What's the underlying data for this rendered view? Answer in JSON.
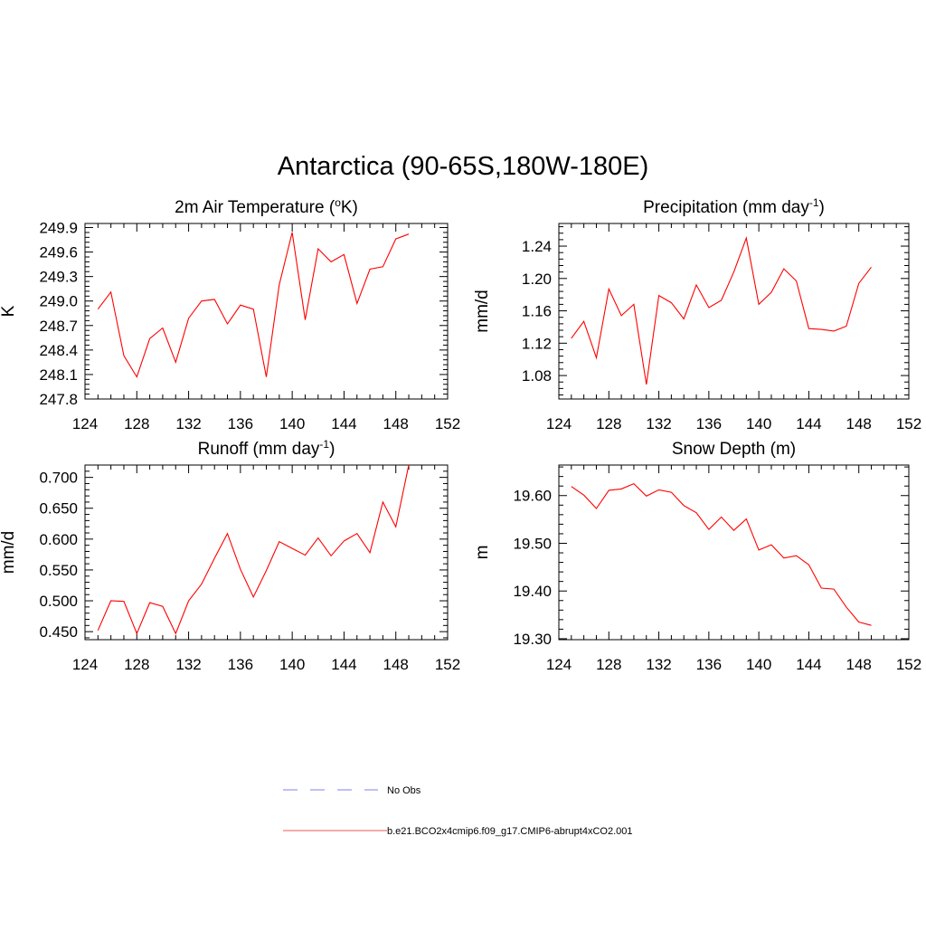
{
  "title": "Antarctica (90-65S,180W-180E)",
  "legend": [
    {
      "label": "No Obs",
      "color": "#9a9af0",
      "style": "dashed"
    },
    {
      "label": "b.e21.BCO2x4cmip6.f09_g17.CMIP6-abrupt4xCO2.001",
      "color": "#f07878",
      "style": "solid"
    }
  ],
  "chart_data": [
    {
      "type": "line",
      "title": "2m Air Temperature (°K)",
      "title_parts": [
        "2m Air Temperature (",
        "o",
        "K)"
      ],
      "xlabel": "",
      "ylabel": "K",
      "xlim": [
        124,
        152
      ],
      "ylim": [
        247.8,
        249.95
      ],
      "xticks": [
        "124",
        "128",
        "132",
        "136",
        "140",
        "144",
        "148",
        "152"
      ],
      "yticks": [
        "247.8",
        "248.1",
        "248.4",
        "248.7",
        "249.0",
        "249.3",
        "249.6",
        "249.9"
      ],
      "grid": false,
      "color": "#ff0000",
      "x": [
        125,
        126,
        127,
        128,
        129,
        130,
        131,
        132,
        133,
        134,
        135,
        136,
        137,
        138,
        139,
        140,
        141,
        142,
        143,
        144,
        145,
        146,
        147,
        148,
        149
      ],
      "y": [
        248.9,
        249.11,
        248.33,
        248.07,
        248.54,
        248.67,
        248.25,
        248.79,
        249.0,
        249.02,
        248.72,
        248.95,
        248.9,
        248.07,
        249.2,
        249.84,
        248.77,
        249.64,
        249.48,
        249.57,
        248.97,
        249.39,
        249.42,
        249.76,
        249.82
      ]
    },
    {
      "type": "line",
      "title": "Precipitation (mm day-1)",
      "title_parts": [
        "Precipitation (mm day",
        "-1",
        ")"
      ],
      "xlabel": "",
      "ylabel": "mm/d",
      "xlim": [
        124,
        152
      ],
      "ylim": [
        1.051,
        1.268
      ],
      "xticks": [
        "124",
        "128",
        "132",
        "136",
        "140",
        "144",
        "148",
        "152"
      ],
      "yticks": [
        "1.08",
        "1.12",
        "1.16",
        "1.20",
        "1.24"
      ],
      "grid": false,
      "color": "#ff0000",
      "x": [
        125,
        126,
        127,
        128,
        129,
        130,
        131,
        132,
        133,
        134,
        135,
        136,
        137,
        138,
        139,
        140,
        141,
        142,
        143,
        144,
        145,
        146,
        147,
        148,
        149
      ],
      "y": [
        1.126,
        1.147,
        1.102,
        1.187,
        1.154,
        1.168,
        1.069,
        1.179,
        1.17,
        1.15,
        1.192,
        1.164,
        1.173,
        1.208,
        1.25,
        1.168,
        1.183,
        1.212,
        1.197,
        1.138,
        1.137,
        1.135,
        1.141,
        1.194,
        1.214
      ]
    },
    {
      "type": "line",
      "title": "Runoff (mm day-1)",
      "title_parts": [
        "Runoff (mm day",
        "-1",
        ")"
      ],
      "xlabel": "",
      "ylabel": "mm/d",
      "xlim": [
        124,
        152
      ],
      "ylim": [
        0.437,
        0.72
      ],
      "xticks": [
        "124",
        "128",
        "132",
        "136",
        "140",
        "144",
        "148",
        "152"
      ],
      "yticks": [
        "0.450",
        "0.500",
        "0.550",
        "0.600",
        "0.650",
        "0.700"
      ],
      "grid": false,
      "color": "#ff0000",
      "x": [
        125,
        126,
        127,
        128,
        129,
        130,
        131,
        132,
        133,
        134,
        135,
        136,
        137,
        138,
        139,
        140,
        141,
        142,
        143,
        144,
        145,
        146,
        147,
        148,
        149
      ],
      "y": [
        0.452,
        0.5,
        0.499,
        0.447,
        0.497,
        0.491,
        0.447,
        0.5,
        0.527,
        0.569,
        0.609,
        0.551,
        0.506,
        0.549,
        0.596,
        0.585,
        0.574,
        0.602,
        0.573,
        0.597,
        0.609,
        0.578,
        0.66,
        0.62,
        0.72
      ]
    },
    {
      "type": "line",
      "title": "Snow Depth (m)",
      "title_parts": [
        "Snow Depth (m)"
      ],
      "xlabel": "",
      "ylabel": "m",
      "xlim": [
        124,
        152
      ],
      "ylim": [
        19.298,
        19.664
      ],
      "xticks": [
        "124",
        "128",
        "132",
        "136",
        "140",
        "144",
        "148",
        "152"
      ],
      "yticks": [
        "19.30",
        "19.40",
        "19.50",
        "19.60"
      ],
      "grid": false,
      "color": "#ff0000",
      "x": [
        125,
        126,
        127,
        128,
        129,
        130,
        131,
        132,
        133,
        134,
        135,
        136,
        137,
        138,
        139,
        140,
        141,
        142,
        143,
        144,
        145,
        146,
        147,
        148,
        149
      ],
      "y": [
        19.619,
        19.601,
        19.573,
        19.611,
        19.614,
        19.625,
        19.599,
        19.612,
        19.607,
        19.579,
        19.564,
        19.529,
        19.555,
        19.527,
        19.551,
        19.486,
        19.497,
        19.469,
        19.474,
        19.455,
        19.406,
        19.404,
        19.366,
        19.335,
        19.328
      ]
    }
  ]
}
